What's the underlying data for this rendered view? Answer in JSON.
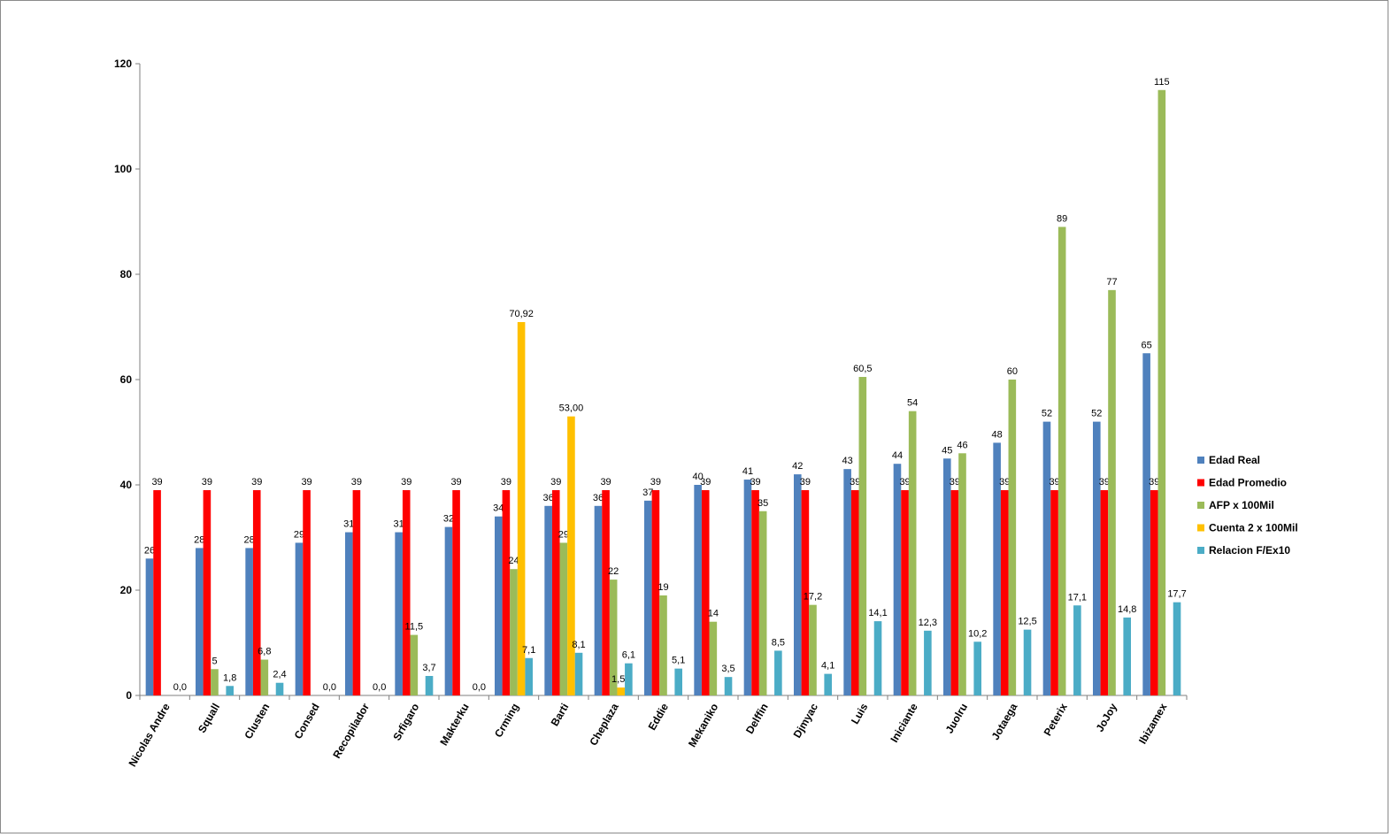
{
  "chart_data": {
    "type": "bar",
    "title": "",
    "xlabel": "",
    "ylabel": "",
    "ylim": [
      0,
      120
    ],
    "yticks": [
      0,
      20,
      40,
      60,
      80,
      100,
      120
    ],
    "grid": false,
    "legend_position": "right",
    "categories": [
      "Nicolas Andre",
      "Squall",
      "Clusten",
      "Consed",
      "Recopilador",
      "Srfigaro",
      "Makterku",
      "Crming",
      "Barti",
      "Cheplaza",
      "Eddie",
      "Mekaniko",
      "Delffin",
      "Djmyac",
      "Luis",
      "Iniciante",
      "Juolru",
      "Jotaega",
      "Peterix",
      "JoJoy",
      "Ibizamex"
    ],
    "series": [
      {
        "name": "Edad Real",
        "color": "#4f81bd",
        "values": [
          26,
          28,
          28,
          29,
          31,
          31,
          32,
          34,
          36,
          36,
          37,
          40,
          41,
          42,
          43,
          44,
          45,
          48,
          52,
          52,
          65
        ],
        "labels": [
          "26",
          "28",
          "28",
          "29",
          "31",
          "31",
          "32",
          "34",
          "36",
          "36",
          "37",
          "40",
          "41",
          "42",
          "43",
          "44",
          "45",
          "48",
          "52",
          "52",
          "65"
        ]
      },
      {
        "name": "Edad Promedio",
        "color": "#ff0000",
        "values": [
          39,
          39,
          39,
          39,
          39,
          39,
          39,
          39,
          39,
          39,
          39,
          39,
          39,
          39,
          39,
          39,
          39,
          39,
          39,
          39,
          39
        ],
        "labels": [
          "39",
          "39",
          "39",
          "39",
          "39",
          "39",
          "39",
          "39",
          "39",
          "39",
          "39",
          "39",
          "39",
          "39",
          "39",
          "39",
          "39",
          "39",
          "39",
          "39",
          "39"
        ]
      },
      {
        "name": "AFP x 100Mil",
        "color": "#9bbb59",
        "values": [
          null,
          5,
          6.8,
          null,
          null,
          11.5,
          null,
          24,
          29,
          22,
          19,
          14,
          35,
          17.2,
          60.5,
          54,
          46,
          60,
          89,
          77,
          115
        ],
        "labels": [
          "",
          "5",
          "6,8",
          "",
          "",
          "11,5",
          "",
          "24",
          "29",
          "22",
          "19",
          "14",
          "35",
          "17,2",
          "60,5",
          "54",
          "46",
          "60",
          "89",
          "77",
          "115"
        ]
      },
      {
        "name": "Cuenta 2 x 100Mil",
        "color": "#ffc000",
        "values": [
          null,
          null,
          null,
          null,
          null,
          null,
          null,
          70.92,
          53.0,
          1.5,
          null,
          null,
          null,
          null,
          null,
          null,
          null,
          null,
          null,
          null,
          null
        ],
        "labels": [
          "",
          "",
          "",
          "",
          "",
          "",
          "",
          "70,92",
          "53,00",
          "1,50",
          "",
          "",
          "",
          "",
          "",
          "",
          "",
          "",
          "",
          "",
          ""
        ]
      },
      {
        "name": "Relacion F/Ex10",
        "color": "#4bacc6",
        "values": [
          0,
          1.8,
          2.4,
          0,
          0,
          3.7,
          0,
          7.1,
          8.1,
          6.1,
          5.1,
          3.5,
          8.5,
          4.1,
          14.1,
          12.3,
          10.2,
          12.5,
          17.1,
          14.8,
          17.7
        ],
        "labels": [
          "0,0",
          "1,8",
          "2,4",
          "0,0",
          "0,0",
          "3,7",
          "0,0",
          "7,1",
          "8,1",
          "6,1",
          "5,1",
          "3,5",
          "8,5",
          "4,1",
          "14,1",
          "12,3",
          "10,2",
          "12,5",
          "17,1",
          "14,8",
          "17,7"
        ]
      }
    ]
  }
}
